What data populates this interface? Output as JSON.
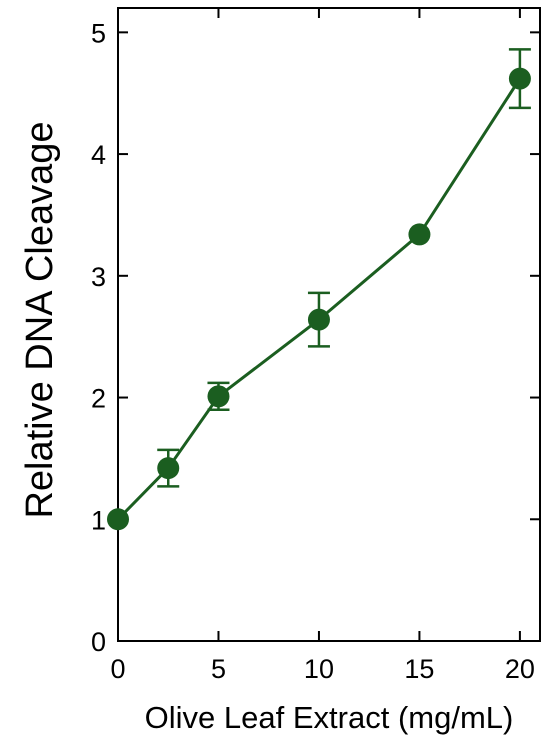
{
  "chart_data": {
    "type": "line",
    "title": "",
    "xlabel": "Olive Leaf Extract (mg/mL)",
    "ylabel": "Relative DNA Cleavage",
    "xlim": [
      0,
      21
    ],
    "ylim": [
      0,
      5.2
    ],
    "x_ticks": [
      0,
      5,
      10,
      15,
      20
    ],
    "y_ticks": [
      0,
      1,
      2,
      3,
      4,
      5
    ],
    "grid": false,
    "legend": "none",
    "series": [
      {
        "color": "#1b5e20",
        "x": [
          0,
          2.5,
          5,
          10,
          15,
          20
        ],
        "y": [
          1.0,
          1.42,
          2.01,
          2.64,
          3.34,
          4.62
        ],
        "error": [
          0.0,
          0.15,
          0.11,
          0.22,
          0.0,
          0.24
        ]
      }
    ]
  }
}
